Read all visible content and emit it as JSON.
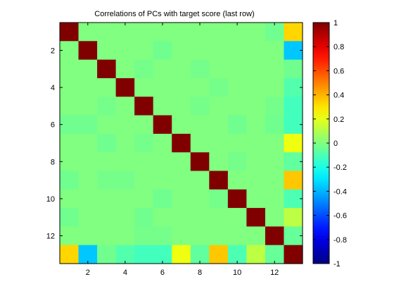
{
  "chart_data": {
    "type": "heatmap",
    "title": "Correlations of PCs with target score (last row)",
    "xlabel": "",
    "ylabel": "",
    "n": 13,
    "x_ticks": [
      2,
      4,
      6,
      8,
      10,
      12
    ],
    "y_ticks": [
      2,
      4,
      6,
      8,
      10,
      12
    ],
    "colorbar": {
      "colormap": "jet",
      "clim": [
        -1,
        1
      ],
      "ticks": [
        1,
        0.8,
        0.6,
        0.4,
        0.2,
        0,
        -0.2,
        -0.4,
        -0.6,
        -0.8,
        -1
      ],
      "tick_labels": [
        "1",
        "0.8",
        "0.6",
        "0.4",
        "0.2",
        "0",
        "-0.2",
        "-0.4",
        "-0.6",
        "-0.8",
        "-1"
      ]
    },
    "matrix": [
      [
        1,
        0,
        0,
        0,
        0,
        0,
        0,
        0,
        0,
        0,
        0,
        -0.03,
        0.33
      ],
      [
        0,
        1,
        0,
        0,
        0,
        -0.03,
        0,
        0,
        0,
        0,
        0,
        0,
        -0.36
      ],
      [
        0,
        0,
        1,
        0,
        -0.02,
        0,
        0,
        -0.02,
        0,
        0,
        0,
        0,
        -0.03
      ],
      [
        0,
        0,
        0,
        1,
        0,
        0,
        0,
        0,
        -0.02,
        0,
        0,
        0,
        -0.09
      ],
      [
        0,
        0,
        -0.02,
        0,
        1,
        0,
        0,
        -0.02,
        0,
        0,
        0,
        -0.02,
        -0.12
      ],
      [
        -0.03,
        -0.03,
        0,
        0,
        0,
        1,
        0,
        0,
        0,
        -0.03,
        0,
        -0.03,
        -0.12
      ],
      [
        0,
        0,
        -0.03,
        0,
        -0.02,
        0,
        1,
        0,
        0,
        0,
        0,
        0,
        0.22
      ],
      [
        0,
        0,
        0,
        0,
        0,
        0,
        0,
        1,
        0,
        -0.02,
        0,
        0,
        -0.06
      ],
      [
        -0.03,
        0,
        -0.02,
        -0.02,
        0,
        0,
        0,
        0,
        1,
        0,
        0,
        0,
        0.36
      ],
      [
        0,
        0,
        0,
        0,
        0,
        -0.03,
        0,
        0,
        -0.02,
        1,
        0,
        0,
        -0.1
      ],
      [
        -0.03,
        0,
        0,
        0,
        -0.03,
        0,
        0,
        0,
        0,
        0,
        1,
        0,
        0.12
      ],
      [
        0,
        0,
        0,
        0,
        -0.02,
        -0.02,
        0,
        0,
        0,
        0,
        0,
        1,
        -0.05
      ],
      [
        0.33,
        -0.36,
        -0.03,
        -0.09,
        -0.12,
        -0.12,
        0.22,
        -0.06,
        0.36,
        -0.1,
        0.12,
        -0.05,
        1
      ]
    ]
  }
}
